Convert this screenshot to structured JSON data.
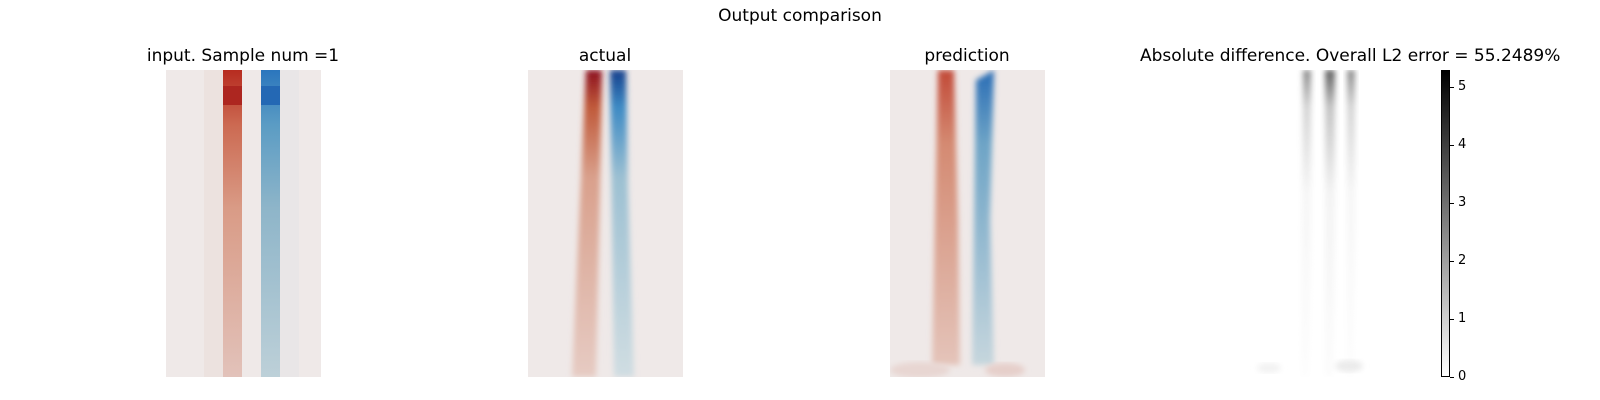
{
  "figure": {
    "suptitle": "Output comparison"
  },
  "chart_data": [
    {
      "type": "heatmap",
      "title": "input. Sample num =1",
      "colormap": "diverging red-blue",
      "axes": "off"
    },
    {
      "type": "heatmap",
      "title": "actual",
      "colormap": "diverging red-blue",
      "axes": "off"
    },
    {
      "type": "heatmap",
      "title": "prediction",
      "colormap": "diverging red-blue",
      "axes": "off"
    },
    {
      "type": "heatmap",
      "title": "Absolute difference. Overall L2 error = 55.2489%",
      "colormap": "gray_r",
      "axes": "off",
      "colorbar": {
        "range": [
          0,
          5.3
        ],
        "ticks": [
          0,
          1,
          2,
          3,
          4,
          5
        ],
        "tick_labels": [
          "0",
          "1",
          "2",
          "3",
          "4",
          "5"
        ]
      }
    }
  ],
  "colors": {
    "red": "#b2182b",
    "blue": "#2166ac",
    "neutral": "#efe9e8"
  }
}
